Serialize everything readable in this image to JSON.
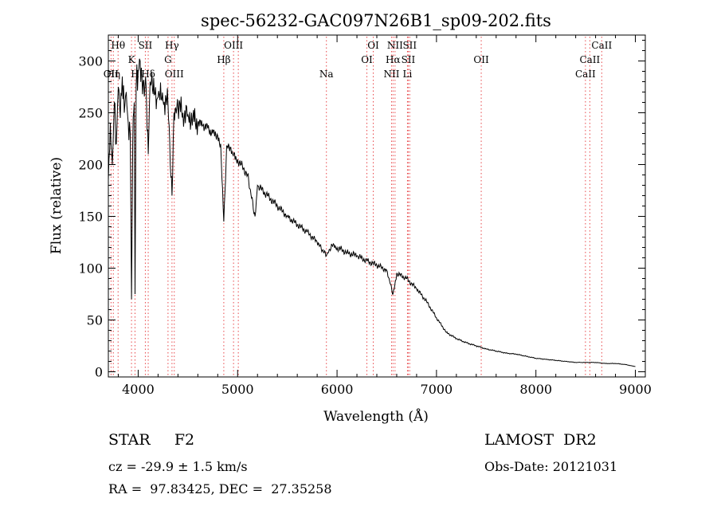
{
  "chart_data": {
    "type": "line",
    "title": "spec-56232-GAC097N26B1_sp09-202.fits",
    "xlabel": "Wavelength (Å)",
    "ylabel": "Flux (relative)",
    "xlim": [
      3700,
      9100
    ],
    "ylim": [
      -5,
      325
    ],
    "xticks": [
      4000,
      5000,
      6000,
      7000,
      8000,
      9000
    ],
    "yticks": [
      0,
      50,
      100,
      150,
      200,
      250,
      300
    ],
    "grid": false,
    "series": [
      {
        "x": [
          3700,
          3720,
          3740,
          3760,
          3780,
          3800,
          3820,
          3840,
          3860,
          3880,
          3900,
          3920,
          3933,
          3945,
          3960,
          3968,
          3980,
          4000,
          4020,
          4050,
          4080,
          4101,
          4120,
          4150,
          4200,
          4250,
          4300,
          4340,
          4360,
          4400,
          4450,
          4500,
          4550,
          4600,
          4650,
          4700,
          4750,
          4800,
          4830,
          4861,
          4890,
          4950,
          5000,
          5100,
          5175,
          5200,
          5300,
          5400,
          5500,
          5600,
          5700,
          5800,
          5893,
          5950,
          6000,
          6100,
          6200,
          6300,
          6400,
          6500,
          6563,
          6600,
          6700,
          6800,
          6900,
          7000,
          7100,
          7200,
          7300,
          7400,
          7500,
          7600,
          7700,
          7800,
          7900,
          8000,
          8100,
          8200,
          8300,
          8400,
          8500,
          8600,
          8700,
          8800,
          8900,
          9000
        ],
        "y": [
          185,
          240,
          200,
          260,
          220,
          275,
          245,
          285,
          250,
          270,
          240,
          230,
          70,
          220,
          260,
          75,
          275,
          290,
          300,
          280,
          275,
          210,
          280,
          268,
          265,
          262,
          258,
          170,
          250,
          255,
          250,
          248,
          245,
          240,
          238,
          235,
          230,
          228,
          220,
          145,
          218,
          210,
          205,
          190,
          150,
          180,
          170,
          160,
          150,
          142,
          135,
          125,
          112,
          122,
          120,
          115,
          112,
          107,
          103,
          98,
          75,
          95,
          90,
          80,
          68,
          52,
          38,
          32,
          28,
          25,
          22,
          20,
          18,
          17,
          15,
          13,
          12,
          11,
          10,
          9,
          9,
          9,
          8,
          8,
          7,
          5
        ]
      }
    ],
    "lines": [
      {
        "x": 3727,
        "labels": [
          "OII"
        ],
        "rows": [
          3
        ]
      },
      {
        "x": 3750,
        "labels": [
          "Hη"
        ],
        "rows": [
          3
        ]
      },
      {
        "x": 3798,
        "labels": [
          "Hθ"
        ],
        "rows": [
          1
        ]
      },
      {
        "x": 3933,
        "labels": [
          "K"
        ],
        "rows": [
          2
        ]
      },
      {
        "x": 3968,
        "labels": [
          "H"
        ],
        "rows": [
          3
        ]
      },
      {
        "x": 4072,
        "labels": [
          "SII"
        ],
        "rows": [
          1
        ]
      },
      {
        "x": 4101,
        "labels": [
          "Hδ"
        ],
        "rows": [
          3
        ]
      },
      {
        "x": 4300,
        "labels": [
          "G"
        ],
        "rows": [
          2
        ]
      },
      {
        "x": 4340,
        "labels": [
          "Hγ"
        ],
        "rows": [
          1
        ]
      },
      {
        "x": 4363,
        "labels": [
          "OIII"
        ],
        "rows": [
          3
        ]
      },
      {
        "x": 4861,
        "labels": [
          "Hβ"
        ],
        "rows": [
          2
        ]
      },
      {
        "x": 4959,
        "labels": [
          "OIII"
        ],
        "rows": [
          1
        ]
      },
      {
        "x": 5007,
        "labels": [],
        "rows": []
      },
      {
        "x": 5893,
        "labels": [
          "Na"
        ],
        "rows": [
          3
        ]
      },
      {
        "x": 6300,
        "labels": [
          "OI"
        ],
        "rows": [
          2
        ]
      },
      {
        "x": 6364,
        "labels": [
          "OI"
        ],
        "rows": [
          1
        ]
      },
      {
        "x": 6548,
        "labels": [
          "NII"
        ],
        "rows": [
          3
        ]
      },
      {
        "x": 6563,
        "labels": [
          "Hα"
        ],
        "rows": [
          2
        ]
      },
      {
        "x": 6583,
        "labels": [
          "NII"
        ],
        "rows": [
          1
        ]
      },
      {
        "x": 6708,
        "labels": [
          "Li"
        ],
        "rows": [
          3
        ]
      },
      {
        "x": 6716,
        "labels": [
          "SII"
        ],
        "rows": [
          2
        ]
      },
      {
        "x": 6731,
        "labels": [
          "SII"
        ],
        "rows": [
          1
        ]
      },
      {
        "x": 7450,
        "labels": [
          "OII"
        ],
        "rows": [
          2
        ]
      },
      {
        "x": 8498,
        "labels": [
          "CaII"
        ],
        "rows": [
          3
        ]
      },
      {
        "x": 8542,
        "labels": [
          "CaII"
        ],
        "rows": [
          2
        ]
      },
      {
        "x": 8662,
        "labels": [
          "CaII"
        ],
        "rows": [
          1
        ]
      }
    ]
  },
  "footer": {
    "object": "STAR     F2",
    "survey": "LAMOST  DR2",
    "velocity": "cz = -29.9 ± 1.5 km/s",
    "obs_date": "Obs-Date: 20121031",
    "coords": "RA =  97.83425, DEC =  27.35258"
  },
  "colors": {
    "spectrum": "#000000",
    "lines": "#e8474a"
  }
}
